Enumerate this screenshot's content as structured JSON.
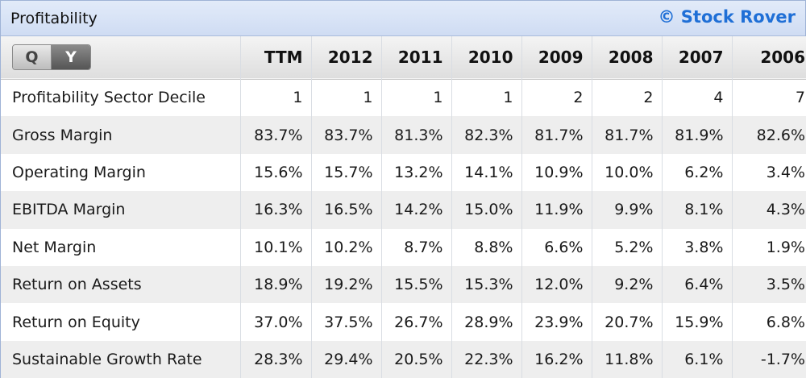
{
  "panel": {
    "title": "Profitability",
    "brand": "© Stock Rover"
  },
  "toggle": {
    "q_label": "Q",
    "y_label": "Y",
    "selected": "Y"
  },
  "columns": [
    "TTM",
    "2012",
    "2011",
    "2010",
    "2009",
    "2008",
    "2007",
    "2006"
  ],
  "rows": [
    {
      "label": "Profitability Sector Decile",
      "values": [
        "1",
        "1",
        "1",
        "1",
        "2",
        "2",
        "4",
        "7"
      ]
    },
    {
      "label": "Gross Margin",
      "values": [
        "83.7%",
        "83.7%",
        "81.3%",
        "82.3%",
        "81.7%",
        "81.7%",
        "81.9%",
        "82.6%"
      ]
    },
    {
      "label": "Operating Margin",
      "values": [
        "15.6%",
        "15.7%",
        "13.2%",
        "14.1%",
        "10.9%",
        "10.0%",
        "6.2%",
        "3.4%"
      ]
    },
    {
      "label": "EBITDA Margin",
      "values": [
        "16.3%",
        "16.5%",
        "14.2%",
        "15.0%",
        "11.9%",
        "9.9%",
        "8.1%",
        "4.3%"
      ]
    },
    {
      "label": "Net Margin",
      "values": [
        "10.1%",
        "10.2%",
        "8.7%",
        "8.8%",
        "6.6%",
        "5.2%",
        "3.8%",
        "1.9%"
      ]
    },
    {
      "label": "Return on Assets",
      "values": [
        "18.9%",
        "19.2%",
        "15.5%",
        "15.3%",
        "12.0%",
        "9.2%",
        "6.4%",
        "3.5%"
      ]
    },
    {
      "label": "Return on Equity",
      "values": [
        "37.0%",
        "37.5%",
        "26.7%",
        "28.9%",
        "23.9%",
        "20.7%",
        "15.9%",
        "6.8%"
      ]
    },
    {
      "label": "Sustainable Growth Rate",
      "values": [
        "28.3%",
        "29.4%",
        "20.5%",
        "22.3%",
        "16.2%",
        "11.8%",
        "6.1%",
        "-1.7%"
      ]
    }
  ]
}
